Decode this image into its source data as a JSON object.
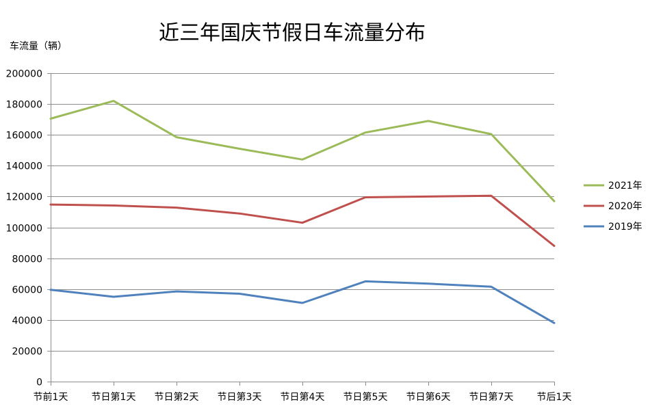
{
  "chart_data": {
    "type": "line",
    "title": "近三年国庆节假日车流量分布",
    "ylabel": "车流量（辆）",
    "xlabel": "",
    "categories": [
      "节前1天",
      "节日第1天",
      "节日第2天",
      "节日第3天",
      "节日第4天",
      "节日第5天",
      "节日第6天",
      "节日第7天",
      "节后1天"
    ],
    "ylim": [
      0,
      200000
    ],
    "yticks": [
      0,
      20000,
      40000,
      60000,
      80000,
      100000,
      120000,
      140000,
      160000,
      180000,
      200000
    ],
    "grid": true,
    "legend_position": "right",
    "series": [
      {
        "name": "2021年",
        "color": "#9BBB59",
        "values": [
          170500,
          182000,
          158500,
          151000,
          144000,
          161500,
          169000,
          160500,
          117000
        ]
      },
      {
        "name": "2020年",
        "color": "#C0504D",
        "values": [
          114800,
          114200,
          112800,
          109000,
          103000,
          119500,
          120000,
          120500,
          88000
        ]
      },
      {
        "name": "2019年",
        "color": "#4F81BD",
        "values": [
          59500,
          55000,
          58500,
          57000,
          51000,
          65000,
          63500,
          61500,
          38000
        ]
      }
    ]
  }
}
